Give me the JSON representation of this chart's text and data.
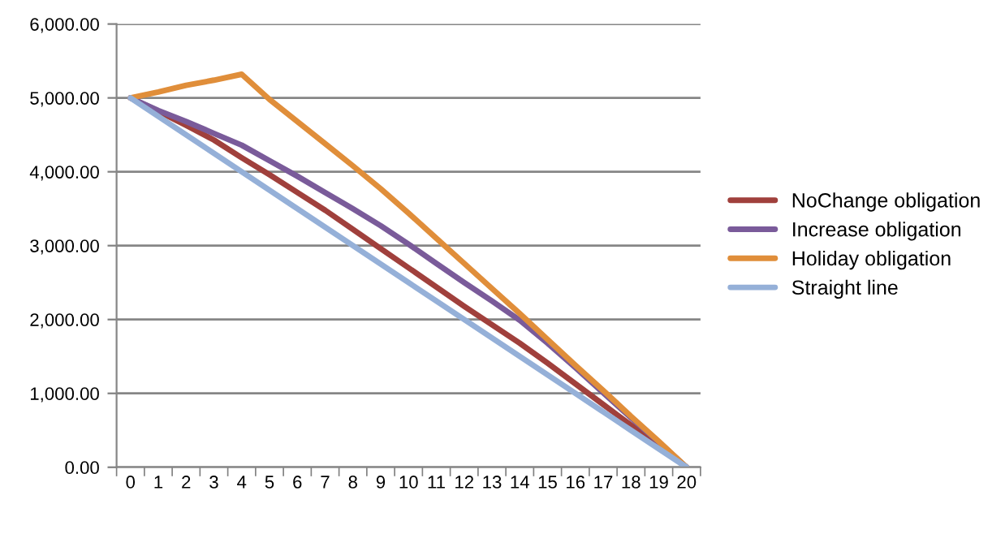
{
  "chart_data": {
    "type": "line",
    "categories": [
      "0",
      "1",
      "2",
      "3",
      "4",
      "5",
      "6",
      "7",
      "8",
      "9",
      "10",
      "11",
      "12",
      "13",
      "14",
      "15",
      "16",
      "17",
      "18",
      "19",
      "20"
    ],
    "series": [
      {
        "name": "NoChange obligation",
        "color": "#a0403c",
        "values": [
          5000,
          4820,
          4630,
          4430,
          4190,
          3960,
          3720,
          3480,
          3220,
          2960,
          2700,
          2440,
          2180,
          1930,
          1680,
          1410,
          1130,
          850,
          570,
          290,
          0
        ]
      },
      {
        "name": "Increase obligation",
        "color": "#7a5b9a",
        "values": [
          5000,
          4830,
          4680,
          4520,
          4360,
          4150,
          3940,
          3720,
          3500,
          3270,
          3020,
          2760,
          2500,
          2250,
          1990,
          1680,
          1350,
          1010,
          670,
          340,
          0
        ]
      },
      {
        "name": "Holiday obligation",
        "color": "#e08e3a",
        "values": [
          5000,
          5080,
          5170,
          5240,
          5320,
          4980,
          4680,
          4380,
          4080,
          3770,
          3440,
          3100,
          2760,
          2420,
          2080,
          1730,
          1380,
          1040,
          690,
          350,
          0
        ]
      },
      {
        "name": "Straight line",
        "color": "#95b0d8",
        "values": [
          5000,
          4750,
          4500,
          4250,
          4000,
          3750,
          3500,
          3250,
          3000,
          2750,
          2500,
          2250,
          2000,
          1750,
          1500,
          1250,
          1000,
          750,
          500,
          250,
          0
        ]
      }
    ],
    "ylim": [
      0,
      6000
    ],
    "yticks": [
      {
        "value": 0,
        "label": "0.00"
      },
      {
        "value": 1000,
        "label": "1,000.00"
      },
      {
        "value": 2000,
        "label": "2,000.00"
      },
      {
        "value": 3000,
        "label": "3,000.00"
      },
      {
        "value": 4000,
        "label": "4,000.00"
      },
      {
        "value": 5000,
        "label": "5,000.00"
      },
      {
        "value": 6000,
        "label": "6,000.00"
      }
    ],
    "grid": "y",
    "legend": "right",
    "marker": "none",
    "line_style": "solid"
  }
}
